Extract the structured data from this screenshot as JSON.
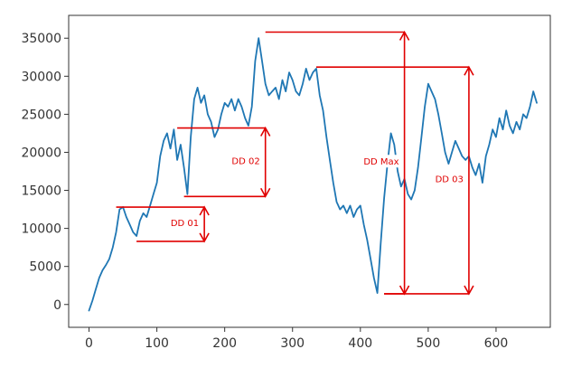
{
  "chart_data": {
    "type": "line",
    "title": "",
    "xlabel": "",
    "ylabel": "",
    "xlim": [
      -30,
      680
    ],
    "ylim": [
      -3000,
      38000
    ],
    "grid": false,
    "x_ticks": [
      0,
      100,
      200,
      300,
      400,
      500,
      600
    ],
    "y_ticks": [
      0,
      5000,
      10000,
      15000,
      20000,
      25000,
      30000,
      35000
    ],
    "x_tick_labels": [
      "0",
      "100",
      "200",
      "300",
      "400",
      "500",
      "600"
    ],
    "y_tick_labels": [
      "0",
      "5000",
      "10000",
      "15000",
      "20000",
      "25000",
      "30000",
      "35000"
    ],
    "colors": {
      "series": "#1f77b4",
      "annotation": "#e00000",
      "axes": "#333333"
    },
    "series": [
      {
        "x": [
          0,
          5,
          10,
          15,
          20,
          25,
          30,
          35,
          40,
          45,
          50,
          55,
          60,
          65,
          70,
          75,
          80,
          85,
          90,
          95,
          100,
          105,
          110,
          115,
          120,
          125,
          130,
          135,
          140,
          145,
          150,
          155,
          160,
          165,
          170,
          175,
          180,
          185,
          190,
          195,
          200,
          205,
          210,
          215,
          220,
          225,
          230,
          235,
          240,
          245,
          250,
          255,
          260,
          265,
          270,
          275,
          280,
          285,
          290,
          295,
          300,
          305,
          310,
          315,
          320,
          325,
          330,
          335,
          340,
          345,
          350,
          355,
          360,
          365,
          370,
          375,
          380,
          385,
          390,
          395,
          400,
          405,
          410,
          415,
          420,
          425,
          430,
          435,
          440,
          445,
          450,
          455,
          460,
          465,
          470,
          475,
          480,
          485,
          490,
          495,
          500,
          505,
          510,
          515,
          520,
          525,
          530,
          535,
          540,
          545,
          550,
          555,
          560,
          565,
          570,
          575,
          580,
          585,
          590,
          595,
          600,
          605,
          610,
          615,
          620,
          625,
          630,
          635,
          640,
          645,
          650,
          655,
          660
        ],
        "values": [
          -800,
          500,
          2000,
          3500,
          4500,
          5200,
          6000,
          7500,
          9500,
          12500,
          12800,
          11500,
          10500,
          9500,
          9000,
          11000,
          12000,
          11500,
          13000,
          14500,
          16000,
          19500,
          21500,
          22500,
          20500,
          23000,
          19000,
          21000,
          18000,
          14500,
          22000,
          27000,
          28500,
          26500,
          27500,
          25000,
          24000,
          22000,
          23000,
          25000,
          26500,
          26000,
          27000,
          25500,
          27000,
          26000,
          24500,
          23500,
          26000,
          32000,
          35000,
          32000,
          29000,
          27500,
          28000,
          28500,
          27000,
          29500,
          28000,
          30500,
          29500,
          28000,
          27500,
          29000,
          31000,
          29500,
          30500,
          31000,
          27500,
          25500,
          22000,
          19000,
          16000,
          13500,
          12500,
          13000,
          12000,
          13000,
          11500,
          12500,
          13000,
          10500,
          8500,
          6000,
          3500,
          1500,
          8000,
          14000,
          18500,
          22500,
          21000,
          17500,
          15500,
          16500,
          14500,
          13800,
          15000,
          18000,
          22000,
          26000,
          29000,
          28000,
          27000,
          25000,
          22500,
          20000,
          18500,
          20000,
          21500,
          20500,
          19500,
          19000,
          19500,
          18000,
          17000,
          18500,
          16000,
          19500,
          21000,
          23000,
          22000,
          24500,
          23000,
          25500,
          23500,
          22500,
          24000,
          23000,
          25000,
          24500,
          26000,
          28000,
          26500
        ]
      }
    ],
    "annotations": [
      {
        "label": "DD 01",
        "peak": {
          "x": 40,
          "y": 12800
        },
        "trough": {
          "x": 70,
          "y": 8300
        },
        "arrow_x": 170
      },
      {
        "label": "DD 02",
        "peak": {
          "x": 130,
          "y": 23200
        },
        "trough": {
          "x": 140,
          "y": 14200
        },
        "arrow_x": 260
      },
      {
        "label": "DD Max",
        "peak": {
          "x": 260,
          "y": 35800
        },
        "trough": {
          "x": 435,
          "y": 1400
        },
        "arrow_x": 465
      },
      {
        "label": "DD 03",
        "peak": {
          "x": 335,
          "y": 31200
        },
        "trough": {
          "x": 435,
          "y": 1400
        },
        "arrow_x": 560
      }
    ]
  }
}
